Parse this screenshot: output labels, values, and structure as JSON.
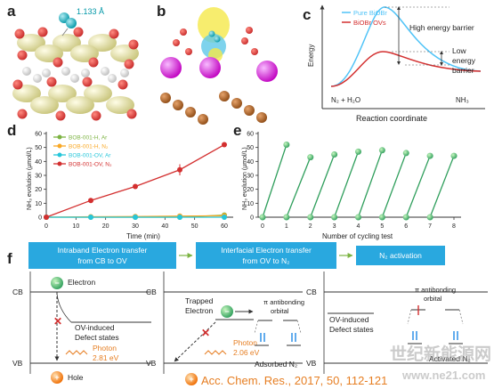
{
  "panels": {
    "a": {
      "letter": "a",
      "bond_label": "1.133 Å"
    },
    "b": {
      "letter": "b"
    },
    "c": {
      "letter": "c"
    },
    "d": {
      "letter": "d"
    },
    "e": {
      "letter": "e"
    },
    "f": {
      "letter": "f"
    }
  },
  "chart_c": {
    "type": "line",
    "legend": [
      "Pure BiOBr",
      "BiOBr OVs"
    ],
    "ylabel": "Energy",
    "xlabel": "Reaction coordinate",
    "start_label": "N₂ + H₂O",
    "end_label": "NH₃",
    "high_label": [
      "High energy barrier"
    ],
    "low_label": [
      "Low",
      "energy",
      "barrier"
    ],
    "colors": {
      "pure": "#4fc3f7",
      "ov": "#d32f2f"
    }
  },
  "chart_data": [
    {
      "type": "line",
      "xlabel": "Time (min)",
      "ylabel": "NH₃ evolution (μmol/L)",
      "xlim": [
        0,
        60
      ],
      "ylim": [
        0,
        60
      ],
      "xticks": [
        0,
        10,
        20,
        30,
        40,
        50,
        60
      ],
      "yticks": [
        0,
        10,
        20,
        30,
        40,
        50,
        60
      ],
      "legend_position": "top-left",
      "x": [
        0,
        15,
        30,
        45,
        60
      ],
      "series": [
        {
          "name": "BOB-001-H, Ar",
          "color": "#7cb342",
          "values": [
            0,
            0,
            0,
            0,
            1.5
          ]
        },
        {
          "name": "BOB-001-H, N₂",
          "color": "#f9a825",
          "values": [
            0,
            0.3,
            0.5,
            0.8,
            1.0
          ]
        },
        {
          "name": "BOB-001-OV, Ar",
          "color": "#26c6da",
          "values": [
            0,
            0,
            0,
            0,
            0
          ]
        },
        {
          "name": "BOB-001-OV, N₂",
          "color": "#d32f2f",
          "values": [
            0,
            12,
            22,
            34,
            52
          ]
        }
      ]
    },
    {
      "type": "line",
      "xlabel": "Number of cycling test",
      "ylabel": "NH₃ evolution (μmol/L)",
      "xlim": [
        0,
        8
      ],
      "ylim": [
        0,
        60
      ],
      "xticks": [
        0,
        1,
        2,
        3,
        4,
        5,
        6,
        7,
        8
      ],
      "yticks": [
        0,
        10,
        20,
        30,
        40,
        50,
        60
      ],
      "color": "#2e9e5b",
      "cycles": [
        {
          "peak_x": 1,
          "peak_y": 52
        },
        {
          "peak_x": 2,
          "peak_y": 43
        },
        {
          "peak_x": 3,
          "peak_y": 45
        },
        {
          "peak_x": 4,
          "peak_y": 47
        },
        {
          "peak_x": 5,
          "peak_y": 48
        },
        {
          "peak_x": 6,
          "peak_y": 46
        },
        {
          "peak_x": 7,
          "peak_y": 44
        },
        {
          "peak_x": 8,
          "peak_y": 44
        }
      ]
    }
  ],
  "panel_f": {
    "box1": [
      "Intraband Electron transfer",
      "from CB to OV"
    ],
    "box2": [
      "Interfacial Electron transfer",
      "from OV to N₂"
    ],
    "box3": "N₂ activation",
    "cb": "CB",
    "vb": "VB",
    "electron": "Electron",
    "ov_states": [
      "OV-induced",
      "Defect states"
    ],
    "photon1": [
      "Photon",
      "2.81 eV"
    ],
    "hole": "Hole",
    "trapped": [
      "Trapped",
      "Electron"
    ],
    "photon2": [
      "Photon",
      "2.06 eV"
    ],
    "pi_orbital": [
      "π antibonding",
      "orbital"
    ],
    "adsorbed": "Adsorbed N₂",
    "activated": "Activated N₂",
    "citation": "Acc. Chem. Res., 2017, 50, 112-121",
    "watermark": "世纪新能源网",
    "watermark_url": "www.ne21.com"
  }
}
